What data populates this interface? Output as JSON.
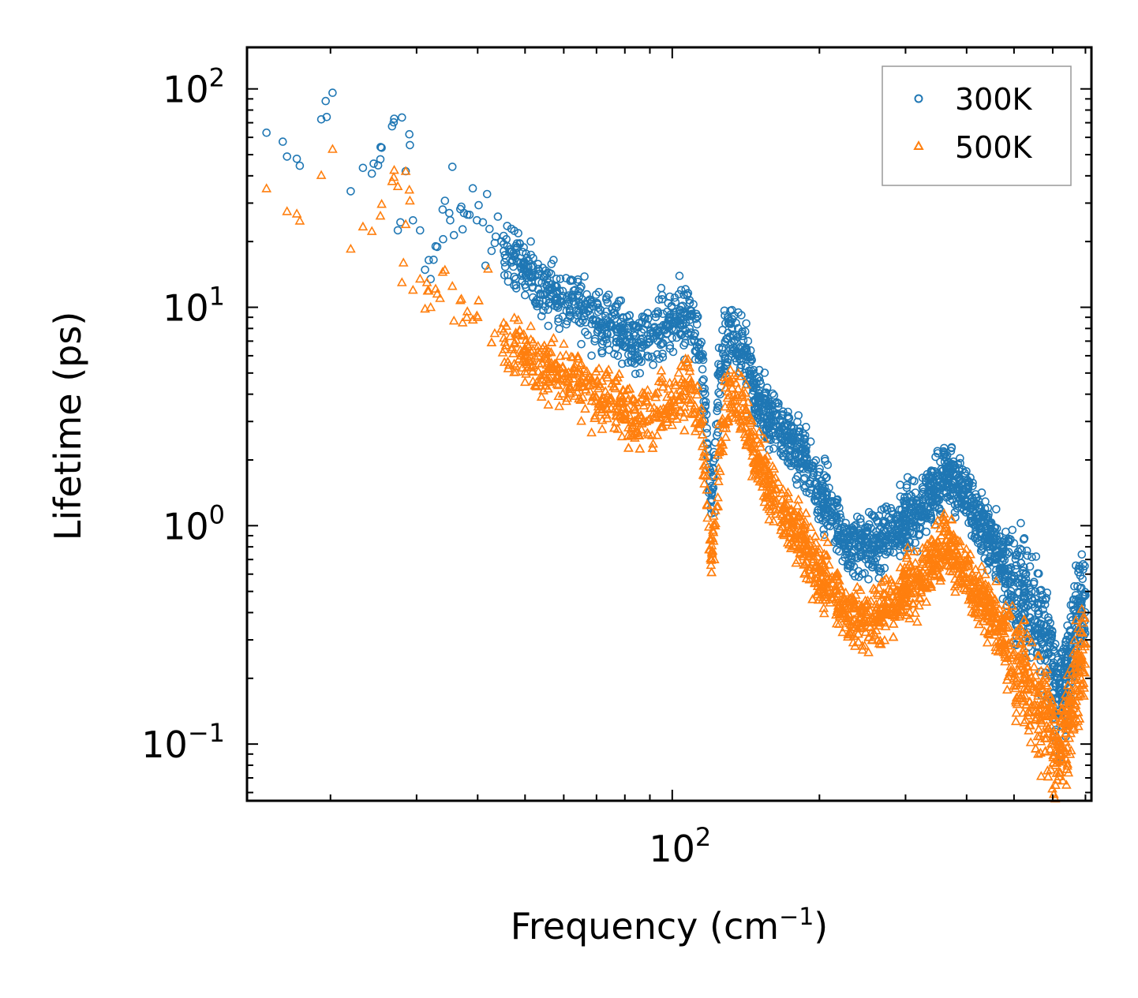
{
  "chart_data": {
    "type": "scatter",
    "title": "",
    "xlabel": {
      "base": "Frequency (cm",
      "sup": "−1",
      "close": ")"
    },
    "ylabel": "Lifetime (ps)",
    "xscale": "log",
    "yscale": "log",
    "xlim": [
      13.5,
      720
    ],
    "ylim": [
      0.055,
      155
    ],
    "x_ticks": [
      {
        "value": 100,
        "base": "10",
        "exp": "2"
      }
    ],
    "y_ticks": [
      {
        "value": 0.1,
        "base": "10",
        "exp": "−1"
      },
      {
        "value": 1,
        "base": "10",
        "exp": "0"
      },
      {
        "value": 10,
        "base": "10",
        "exp": "1"
      },
      {
        "value": 100,
        "base": "10",
        "exp": "2"
      }
    ],
    "legend": {
      "position": "top-right"
    },
    "series": [
      {
        "name": "300K",
        "marker": "circle",
        "color": "#1f77b4",
        "profile": [
          [
            14.8,
            62
          ],
          [
            16.3,
            48
          ],
          [
            20.2,
            96
          ],
          [
            22,
            34
          ],
          [
            27,
            73
          ],
          [
            27.5,
            24
          ],
          [
            28.5,
            42
          ],
          [
            29,
            61
          ],
          [
            30,
            24
          ],
          [
            32,
            16
          ],
          [
            35,
            26
          ],
          [
            38,
            27
          ],
          [
            41,
            23.5
          ],
          [
            45,
            18
          ],
          [
            50,
            15
          ],
          [
            55,
            12
          ],
          [
            60,
            10.8
          ],
          [
            70,
            9
          ],
          [
            80,
            7.5
          ],
          [
            90,
            6.8
          ],
          [
            100,
            8.8
          ],
          [
            110,
            8.5
          ],
          [
            115,
            6.0
          ],
          [
            120,
            1.25
          ],
          [
            125,
            5.0
          ],
          [
            130,
            7.8
          ],
          [
            140,
            6.5
          ],
          [
            150,
            3.8
          ],
          [
            160,
            3.0
          ],
          [
            175,
            2.5
          ],
          [
            190,
            2.0
          ],
          [
            200,
            1.4
          ],
          [
            215,
            1.1
          ],
          [
            230,
            0.82
          ],
          [
            250,
            0.8
          ],
          [
            270,
            0.9
          ],
          [
            300,
            1.05
          ],
          [
            330,
            1.3
          ],
          [
            360,
            1.7
          ],
          [
            390,
            1.5
          ],
          [
            420,
            1.1
          ],
          [
            450,
            0.85
          ],
          [
            480,
            0.65
          ],
          [
            510,
            0.5
          ],
          [
            545,
            0.42
          ],
          [
            580,
            0.32
          ],
          [
            610,
            0.16
          ],
          [
            640,
            0.2
          ],
          [
            660,
            0.28
          ],
          [
            680,
            0.4
          ],
          [
            700,
            0.43
          ]
        ],
        "points": [
          [
            14.8,
            63
          ],
          [
            16.3,
            49
          ],
          [
            20.2,
            96
          ],
          [
            22,
            34
          ],
          [
            27,
            73
          ],
          [
            28,
            74
          ],
          [
            29,
            62
          ],
          [
            28.5,
            42
          ],
          [
            27.8,
            24.5
          ],
          [
            29.5,
            25
          ],
          [
            30.5,
            22.5
          ],
          [
            32.5,
            16.5
          ],
          [
            34,
            20.5
          ],
          [
            35,
            27
          ],
          [
            35.5,
            44
          ],
          [
            37.5,
            27
          ],
          [
            38.5,
            26.5
          ],
          [
            41,
            24.5
          ],
          [
            41.5,
            15.5
          ],
          [
            44,
            26
          ],
          [
            46,
            19
          ],
          [
            47,
            18
          ],
          [
            49,
            16
          ],
          [
            51,
            14.5
          ],
          [
            58,
            13.5
          ],
          [
            120,
            1.2
          ],
          [
            122,
            1.15
          ],
          [
            128,
            5.2
          ],
          [
            205,
            1.5
          ],
          [
            212,
            1.2
          ],
          [
            365,
            2.1
          ],
          [
            500,
            0.83
          ],
          [
            640,
            0.3
          ],
          [
            700,
            0.48
          ]
        ]
      },
      {
        "name": "500K",
        "marker": "triangle",
        "color": "#ff7f0e",
        "profile": [
          [
            14.8,
            34
          ],
          [
            16.3,
            27
          ],
          [
            20.2,
            53
          ],
          [
            22,
            18
          ],
          [
            27,
            41
          ],
          [
            28.5,
            42
          ],
          [
            29,
            34
          ],
          [
            30,
            13
          ],
          [
            32,
            12
          ],
          [
            35,
            11
          ],
          [
            40,
            9
          ],
          [
            45,
            7.2
          ],
          [
            50,
            6.0
          ],
          [
            55,
            5.2
          ],
          [
            60,
            4.8
          ],
          [
            70,
            4.0
          ],
          [
            80,
            3.5
          ],
          [
            90,
            3.0
          ],
          [
            100,
            3.5
          ],
          [
            108,
            4.3
          ],
          [
            115,
            3.0
          ],
          [
            120,
            0.68
          ],
          [
            125,
            2.2
          ],
          [
            130,
            4.2
          ],
          [
            140,
            3.4
          ],
          [
            150,
            2.0
          ],
          [
            160,
            1.4
          ],
          [
            175,
            1.05
          ],
          [
            190,
            0.8
          ],
          [
            200,
            0.6
          ],
          [
            215,
            0.5
          ],
          [
            230,
            0.4
          ],
          [
            250,
            0.37
          ],
          [
            270,
            0.42
          ],
          [
            300,
            0.5
          ],
          [
            330,
            0.62
          ],
          [
            360,
            0.85
          ],
          [
            390,
            0.65
          ],
          [
            420,
            0.5
          ],
          [
            450,
            0.4
          ],
          [
            480,
            0.3
          ],
          [
            510,
            0.22
          ],
          [
            545,
            0.17
          ],
          [
            580,
            0.14
          ],
          [
            610,
            0.08
          ],
          [
            640,
            0.12
          ],
          [
            660,
            0.16
          ],
          [
            680,
            0.22
          ],
          [
            700,
            0.25
          ]
        ],
        "points": [
          [
            14.8,
            35
          ],
          [
            16.3,
            27.5
          ],
          [
            20.2,
            53
          ],
          [
            22,
            18.5
          ],
          [
            27,
            42.5
          ],
          [
            28.5,
            42
          ],
          [
            29,
            34.5
          ],
          [
            28.5,
            24
          ],
          [
            28.2,
            16
          ],
          [
            28,
            13
          ],
          [
            29.5,
            12
          ],
          [
            30.5,
            13.5
          ],
          [
            31.5,
            13
          ],
          [
            33.5,
            11
          ],
          [
            35.5,
            12.5
          ],
          [
            38,
            9
          ],
          [
            40,
            9
          ],
          [
            42,
            15
          ],
          [
            45,
            6.2
          ],
          [
            50,
            6.5
          ],
          [
            55,
            5.8
          ],
          [
            60,
            6.8
          ],
          [
            66,
            5.2
          ],
          [
            120,
            0.66
          ],
          [
            122,
            0.7
          ],
          [
            200,
            0.55
          ],
          [
            245,
            0.27
          ],
          [
            500,
            0.2
          ],
          [
            560,
            0.09
          ],
          [
            640,
            0.065
          ],
          [
            700,
            0.29
          ]
        ]
      }
    ]
  }
}
